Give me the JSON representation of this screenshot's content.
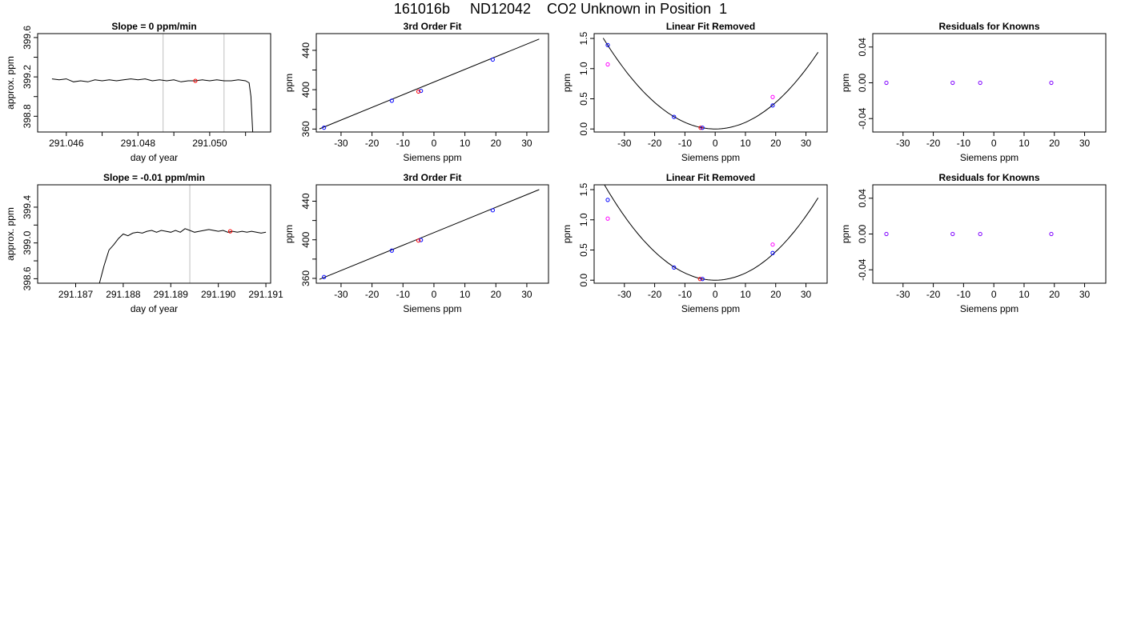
{
  "page_title": "161016b     ND12042    CO2 Unknown in Position  1",
  "colors": {
    "line": "#000000",
    "vline": "#bfbfbf",
    "blue": "#0000ff",
    "red": "#ff0000",
    "magenta": "#ff00ff",
    "purple": "#7f00ff"
  },
  "chart_data": [
    {
      "type": "line",
      "title": "Slope =  0  ppm/min",
      "xlabel": "day of year",
      "ylabel": "approx. ppm",
      "xlim": [
        291.0452,
        291.0517
      ],
      "ylim": [
        398.64,
        399.64
      ],
      "xticks": [
        291.046,
        291.047,
        291.048,
        291.049,
        291.05,
        291.051
      ],
      "xticklabels": [
        "291.046",
        "",
        "291.048",
        "",
        "291.050",
        ""
      ],
      "yticks": [
        398.8,
        399.0,
        399.2,
        399.4,
        399.6
      ],
      "yticklabels": [
        "398.8",
        "",
        "399.2",
        "",
        "399.6"
      ],
      "vlines": [
        291.0487,
        291.0504
      ],
      "series": [
        {
          "values": [
            [
              291.0456,
              399.18
            ],
            [
              291.0458,
              399.17
            ],
            [
              291.046,
              399.18
            ],
            [
              291.0462,
              399.15
            ],
            [
              291.0464,
              399.16
            ],
            [
              291.0466,
              399.15
            ],
            [
              291.0468,
              399.17
            ],
            [
              291.047,
              399.16
            ],
            [
              291.0472,
              399.17
            ],
            [
              291.0474,
              399.16
            ],
            [
              291.0476,
              399.17
            ],
            [
              291.0478,
              399.18
            ],
            [
              291.048,
              399.17
            ],
            [
              291.0482,
              399.18
            ],
            [
              291.0484,
              399.16
            ],
            [
              291.0486,
              399.17
            ],
            [
              291.0488,
              399.16
            ],
            [
              291.049,
              399.17
            ],
            [
              291.0492,
              399.15
            ],
            [
              291.0494,
              399.16
            ],
            [
              291.0496,
              399.16
            ],
            [
              291.0498,
              399.17
            ],
            [
              291.05,
              399.16
            ],
            [
              291.0502,
              399.17
            ],
            [
              291.0504,
              399.16
            ],
            [
              291.0506,
              399.16
            ],
            [
              291.0508,
              399.17
            ],
            [
              291.051,
              399.16
            ],
            [
              291.0511,
              399.14
            ],
            [
              291.05115,
              399.0
            ],
            [
              291.0512,
              398.64
            ]
          ]
        }
      ],
      "points": [
        {
          "x": 291.0496,
          "y": 399.16,
          "color": "red"
        }
      ]
    },
    {
      "type": "scatter",
      "title": "3rd Order Fit",
      "xlabel": "Siemens ppm",
      "ylabel": "ppm",
      "xlim": [
        -38,
        37
      ],
      "ylim": [
        357,
        457
      ],
      "xticks": [
        -30,
        -20,
        -10,
        0,
        10,
        20,
        30
      ],
      "xticklabels": [
        "-30",
        "-20",
        "-10",
        "0",
        "10",
        "20",
        "30"
      ],
      "yticks": [
        360,
        380,
        400,
        420,
        440
      ],
      "yticklabels": [
        "360",
        "",
        "400",
        "",
        "440"
      ],
      "curve": [
        [
          -37,
          360.2
        ],
        [
          34,
          451.5
        ]
      ],
      "points": [
        {
          "x": -35.5,
          "y": 361.4,
          "color": "blue"
        },
        {
          "x": -13.6,
          "y": 388.8,
          "color": "blue"
        },
        {
          "x": -4.2,
          "y": 398.8,
          "color": "blue"
        },
        {
          "x": -5,
          "y": 398.1,
          "color": "red"
        },
        {
          "x": 19,
          "y": 430.6,
          "color": "blue"
        }
      ]
    },
    {
      "type": "scatter",
      "title": "Linear Fit Removed",
      "xlabel": "Siemens ppm",
      "ylabel": "ppm",
      "xlim": [
        -40,
        37
      ],
      "ylim": [
        -0.05,
        1.58
      ],
      "xticks": [
        -30,
        -20,
        -10,
        0,
        10,
        20,
        30
      ],
      "xticklabels": [
        "-30",
        "-20",
        "-10",
        "0",
        "10",
        "20",
        "30"
      ],
      "yticks": [
        0,
        0.5,
        1,
        1.5
      ],
      "yticklabels": [
        "0.0",
        "0.5",
        "1.0",
        "1.5"
      ],
      "quadratic": {
        "a": 0.0011,
        "x0": 0,
        "y0": 0,
        "from": -37,
        "to": 34
      },
      "points": [
        {
          "x": -35.5,
          "y": 1.39,
          "color": "blue"
        },
        {
          "x": -35.5,
          "y": 1.07,
          "color": "magenta"
        },
        {
          "x": -13.6,
          "y": 0.2,
          "color": "blue"
        },
        {
          "x": -4.8,
          "y": 0.02,
          "color": "red"
        },
        {
          "x": -4.2,
          "y": 0.02,
          "color": "blue"
        },
        {
          "x": 19,
          "y": 0.39,
          "color": "blue"
        },
        {
          "x": 19,
          "y": 0.53,
          "color": "magenta"
        }
      ]
    },
    {
      "type": "scatter",
      "title": "Residuals for Knowns",
      "xlabel": "Siemens ppm",
      "ylabel": "ppm",
      "xlim": [
        -40,
        37
      ],
      "ylim": [
        -0.055,
        0.055
      ],
      "xticks": [
        -30,
        -20,
        -10,
        0,
        10,
        20,
        30
      ],
      "xticklabels": [
        "-30",
        "-20",
        "-10",
        "0",
        "10",
        "20",
        "30"
      ],
      "yticks": [
        -0.04,
        0,
        0.04
      ],
      "yticklabels": [
        "-0.04",
        "0.00",
        "0.04"
      ],
      "points": [
        {
          "x": -35.5,
          "y": 0,
          "color": "purple"
        },
        {
          "x": -13.6,
          "y": 0,
          "color": "purple"
        },
        {
          "x": -4.5,
          "y": 0,
          "color": "purple"
        },
        {
          "x": 19,
          "y": 0,
          "color": "purple"
        }
      ]
    },
    {
      "type": "line",
      "title": "Slope =  -0.01  ppm/min",
      "xlabel": "day of year",
      "ylabel": "approx. ppm",
      "xlim": [
        291.1862,
        291.1911
      ],
      "ylim": [
        398.55,
        399.65
      ],
      "xticks": [
        291.187,
        291.188,
        291.189,
        291.19,
        291.191
      ],
      "xticklabels": [
        "291.187",
        "291.188",
        "291.189",
        "291.190",
        "291.191"
      ],
      "yticks": [
        398.6,
        398.8,
        399.0,
        399.2,
        399.4
      ],
      "yticklabels": [
        "398.6",
        "",
        "399.0",
        "",
        "399.4"
      ],
      "vlines": [
        291.1894,
        291.1911
      ],
      "series": [
        {
          "values": [
            [
              291.1875,
              398.55
            ],
            [
              291.1876,
              398.75
            ],
            [
              291.1877,
              398.92
            ],
            [
              291.1878,
              398.98
            ],
            [
              291.1879,
              399.05
            ],
            [
              291.188,
              399.1
            ],
            [
              291.1881,
              399.08
            ],
            [
              291.1882,
              399.11
            ],
            [
              291.1883,
              399.12
            ],
            [
              291.1884,
              399.11
            ],
            [
              291.1885,
              399.13
            ],
            [
              291.1886,
              399.14
            ],
            [
              291.1887,
              399.12
            ],
            [
              291.1888,
              399.14
            ],
            [
              291.1889,
              399.13
            ],
            [
              291.189,
              399.12
            ],
            [
              291.1891,
              399.14
            ],
            [
              291.1892,
              399.12
            ],
            [
              291.1893,
              399.16
            ],
            [
              291.1894,
              399.14
            ],
            [
              291.1895,
              399.12
            ],
            [
              291.1896,
              399.13
            ],
            [
              291.1897,
              399.14
            ],
            [
              291.1898,
              399.15
            ],
            [
              291.1899,
              399.14
            ],
            [
              291.19,
              399.13
            ],
            [
              291.1901,
              399.14
            ],
            [
              291.1902,
              399.12
            ],
            [
              291.1903,
              399.13
            ],
            [
              291.1904,
              399.12
            ],
            [
              291.1905,
              399.13
            ],
            [
              291.1906,
              399.12
            ],
            [
              291.1907,
              399.13
            ],
            [
              291.1908,
              399.12
            ],
            [
              291.1909,
              399.11
            ],
            [
              291.191,
              399.12
            ]
          ]
        }
      ],
      "points": [
        {
          "x": 291.19025,
          "y": 399.13,
          "color": "red"
        }
      ]
    },
    {
      "type": "scatter",
      "title": "3rd Order Fit",
      "xlabel": "Siemens ppm",
      "ylabel": "ppm",
      "xlim": [
        -38,
        37
      ],
      "ylim": [
        355,
        457
      ],
      "xticks": [
        -30,
        -20,
        -10,
        0,
        10,
        20,
        30
      ],
      "xticklabels": [
        "-30",
        "-20",
        "-10",
        "0",
        "10",
        "20",
        "30"
      ],
      "yticks": [
        360,
        380,
        400,
        420,
        440
      ],
      "yticklabels": [
        "360",
        "",
        "400",
        "",
        "440"
      ],
      "curve": [
        [
          -37,
          359
        ],
        [
          34,
          452
        ]
      ],
      "points": [
        {
          "x": -35.5,
          "y": 361.4,
          "color": "blue"
        },
        {
          "x": -13.6,
          "y": 388.8,
          "color": "blue"
        },
        {
          "x": -4.2,
          "y": 399.8,
          "color": "blue"
        },
        {
          "x": -5,
          "y": 399.2,
          "color": "red"
        },
        {
          "x": 19,
          "y": 430.6,
          "color": "blue"
        }
      ]
    },
    {
      "type": "scatter",
      "title": "Linear Fit Removed",
      "xlabel": "Siemens ppm",
      "ylabel": "ppm",
      "xlim": [
        -40,
        37
      ],
      "ylim": [
        -0.05,
        1.58
      ],
      "xticks": [
        -30,
        -20,
        -10,
        0,
        10,
        20,
        30
      ],
      "xticklabels": [
        "-30",
        "-20",
        "-10",
        "0",
        "10",
        "20",
        "30"
      ],
      "yticks": [
        0,
        0.5,
        1,
        1.5
      ],
      "yticklabels": [
        "0.0",
        "0.5",
        "1.0",
        "1.5"
      ],
      "quadratic": {
        "a": 0.00118,
        "x0": 0,
        "y0": 0,
        "from": -37,
        "to": 34
      },
      "points": [
        {
          "x": -35.5,
          "y": 1.33,
          "color": "blue"
        },
        {
          "x": -35.5,
          "y": 1.02,
          "color": "magenta"
        },
        {
          "x": -13.6,
          "y": 0.21,
          "color": "blue"
        },
        {
          "x": -5,
          "y": 0.02,
          "color": "red"
        },
        {
          "x": -4.2,
          "y": 0.02,
          "color": "blue"
        },
        {
          "x": 19,
          "y": 0.45,
          "color": "blue"
        },
        {
          "x": 19,
          "y": 0.59,
          "color": "magenta"
        }
      ]
    },
    {
      "type": "scatter",
      "title": "Residuals for Knowns",
      "xlabel": "Siemens ppm",
      "ylabel": "ppm",
      "xlim": [
        -40,
        37
      ],
      "ylim": [
        -0.055,
        0.055
      ],
      "xticks": [
        -30,
        -20,
        -10,
        0,
        10,
        20,
        30
      ],
      "xticklabels": [
        "-30",
        "-20",
        "-10",
        "0",
        "10",
        "20",
        "30"
      ],
      "yticks": [
        -0.04,
        0,
        0.04
      ],
      "yticklabels": [
        "-0.04",
        "0.00",
        "0.04"
      ],
      "points": [
        {
          "x": -35.5,
          "y": 0,
          "color": "purple"
        },
        {
          "x": -13.6,
          "y": 0,
          "color": "purple"
        },
        {
          "x": -4.5,
          "y": 0,
          "color": "purple"
        },
        {
          "x": 19,
          "y": 0,
          "color": "purple"
        }
      ]
    }
  ]
}
